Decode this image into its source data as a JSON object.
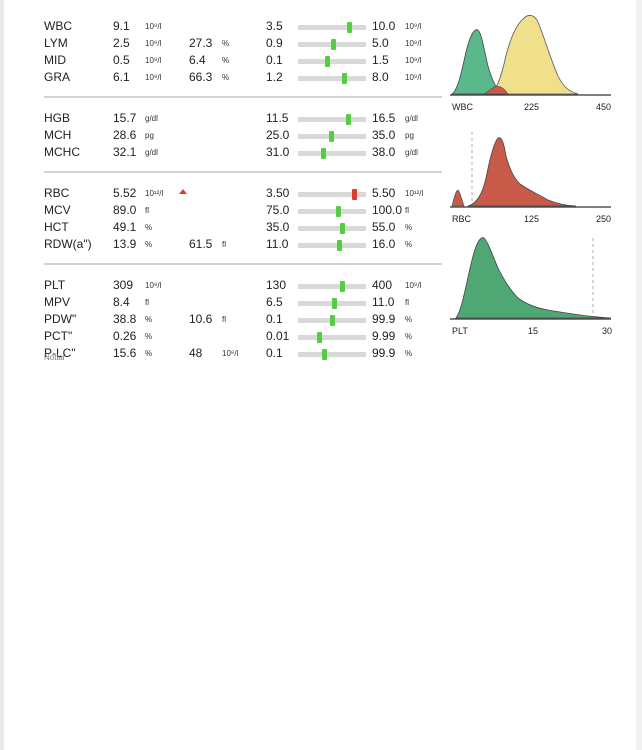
{
  "groups": [
    {
      "rows": [
        {
          "name": "WBC",
          "value": "9.1",
          "unit": "10⁹/l",
          "pct": "",
          "pct_unit": "",
          "flag": false,
          "low": "3.5",
          "high": "10.0",
          "range_unit": "10⁹/l",
          "position": 0.75,
          "status": "normal"
        },
        {
          "name": "LYM",
          "value": "2.5",
          "unit": "10⁹/l",
          "pct": "27.3",
          "pct_unit": "%",
          "flag": false,
          "low": "0.9",
          "high": "5.0",
          "range_unit": "10⁹/l",
          "position": 0.52,
          "status": "normal"
        },
        {
          "name": "MID",
          "value": "0.5",
          "unit": "10⁹/l",
          "pct": "6.4",
          "pct_unit": "%",
          "flag": false,
          "low": "0.1",
          "high": "1.5",
          "range_unit": "10⁹/l",
          "position": 0.44,
          "status": "normal"
        },
        {
          "name": "GRA",
          "value": "6.1",
          "unit": "10⁹/l",
          "pct": "66.3",
          "pct_unit": "%",
          "flag": false,
          "low": "1.2",
          "high": "8.0",
          "range_unit": "10⁹/l",
          "position": 0.68,
          "status": "normal"
        }
      ]
    },
    {
      "rows": [
        {
          "name": "HGB",
          "value": "15.7",
          "unit": "g/dl",
          "pct": "",
          "pct_unit": "",
          "flag": false,
          "low": "11.5",
          "high": "16.5",
          "range_unit": "g/dl",
          "position": 0.74,
          "status": "normal"
        },
        {
          "name": "MCH",
          "value": "28.6",
          "unit": "pg",
          "pct": "",
          "pct_unit": "",
          "flag": false,
          "low": "25.0",
          "high": "35.0",
          "range_unit": "pg",
          "position": 0.49,
          "status": "normal"
        },
        {
          "name": "MCHC",
          "value": "32.1",
          "unit": "g/dl",
          "pct": "",
          "pct_unit": "",
          "flag": false,
          "low": "31.0",
          "high": "38.0",
          "range_unit": "g/dl",
          "position": 0.37,
          "status": "normal"
        }
      ]
    },
    {
      "rows": [
        {
          "name": "RBC",
          "value": "5.52",
          "unit": "10¹²/l",
          "pct": "",
          "pct_unit": "",
          "flag": true,
          "low": "3.50",
          "high": "5.50",
          "range_unit": "10¹²/l",
          "position": 0.83,
          "status": "high"
        },
        {
          "name": "MCV",
          "value": "89.0",
          "unit": "fl",
          "pct": "",
          "pct_unit": "",
          "flag": false,
          "low": "75.0",
          "high": "100.0",
          "range_unit": "fl",
          "position": 0.6,
          "status": "normal"
        },
        {
          "name": "HCT",
          "value": "49.1",
          "unit": "%",
          "pct": "",
          "pct_unit": "",
          "flag": false,
          "low": "35.0",
          "high": "55.0",
          "range_unit": "%",
          "position": 0.66,
          "status": "normal"
        },
        {
          "name": "RDW(a\")",
          "value": "13.9",
          "unit": "%",
          "pct": "61.5",
          "pct_unit": "fl",
          "flag": false,
          "low": "11.0",
          "high": "16.0",
          "range_unit": "%",
          "position": 0.61,
          "status": "normal"
        }
      ]
    },
    {
      "rows": [
        {
          "name": "PLT",
          "value": "309",
          "unit": "10⁹/l",
          "pct": "",
          "pct_unit": "",
          "flag": false,
          "low": "130",
          "high": "400",
          "range_unit": "10⁹/l",
          "position": 0.65,
          "status": "normal"
        },
        {
          "name": "MPV",
          "value": "8.4",
          "unit": "fl",
          "pct": "",
          "pct_unit": "",
          "flag": false,
          "low": "6.5",
          "high": "11.0",
          "range_unit": "fl",
          "position": 0.53,
          "status": "normal"
        },
        {
          "name": "PDW\"",
          "value": "38.8",
          "unit": "%",
          "pct": "10.6",
          "pct_unit": "fl",
          "flag": false,
          "low": "0.1",
          "high": "99.9",
          "range_unit": "%",
          "position": 0.51,
          "status": "normal"
        },
        {
          "name": "PCT\"",
          "value": "0.26",
          "unit": "%",
          "pct": "",
          "pct_unit": "",
          "flag": false,
          "low": "0.01",
          "high": "9.99",
          "range_unit": "%",
          "position": 0.32,
          "status": "normal"
        },
        {
          "name": "P-LC\"",
          "value": "15.6",
          "unit": "%",
          "pct": "48",
          "pct_unit": "10⁹/l",
          "flag": false,
          "low": "0.1",
          "high": "99.9",
          "range_unit": "%",
          "position": 0.39,
          "status": "normal"
        }
      ]
    }
  ],
  "histograms": [
    {
      "name": "WBC",
      "ticks": [
        "225",
        "450"
      ]
    },
    {
      "name": "RBC",
      "ticks": [
        "125",
        "250"
      ]
    },
    {
      "name": "PLT",
      "ticks": [
        "15",
        "30"
      ]
    }
  ],
  "notes_label": "Notlar",
  "colors": {
    "normal": "#55cc44",
    "high": "#e23b2d",
    "wbc_lym": "#5bb88a",
    "wbc_gra": "#f0e08c",
    "rbc": "#c85a4a",
    "plt": "#4fa874"
  }
}
